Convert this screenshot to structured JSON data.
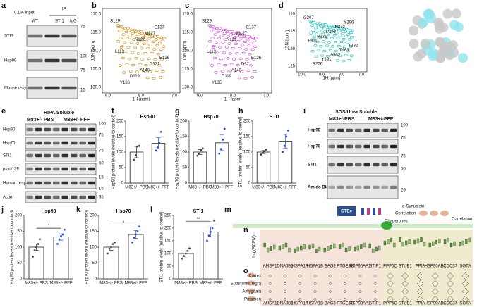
{
  "panel_labels": [
    "a",
    "b",
    "c",
    "d",
    "e",
    "f",
    "g",
    "h",
    "i",
    "j",
    "k",
    "l",
    "m",
    "n",
    "o"
  ],
  "blots": [
    {
      "headers": [
        "0.1% Input",
        "IP",
        "WT",
        "STI1",
        "IgG"
      ],
      "rows": [
        "STI1",
        "Hsp90",
        "Mouse α-synuclein"
      ],
      "mw": [
        "75",
        "100",
        "75",
        "15"
      ]
    },
    {
      "title": "RIPA Soluble",
      "groups": [
        "M83+/- PBS",
        "M83+/- PFF"
      ],
      "rows": [
        "Hsp90",
        "Hsp70",
        "STI1",
        "psyn129",
        "Human α-syn",
        "Actin"
      ],
      "mw": [
        "100",
        "75",
        "75",
        "50",
        "15",
        "15",
        "35"
      ]
    },
    {
      "title": "SDS/Urea Soluble",
      "groups": [
        "M83+/-PBS",
        "M83+/-PFF"
      ],
      "rows": [
        "Hsp90",
        "Hsp70",
        "STI1",
        "Amido Black"
      ],
      "mw": [
        "100",
        "75",
        "75",
        "50",
        "25"
      ]
    }
  ],
  "spectra": [
    {
      "xlabel": "1H (ppm)",
      "ylabel": "15N (ppm)",
      "xticks": [
        "9.0",
        "8.0",
        "7.0"
      ],
      "yticks": [
        "110.0",
        "115.0",
        "120.0",
        "125.0",
        "130.0"
      ],
      "peaks": [
        "S129",
        "D121",
        "N122",
        "Y136",
        "E126",
        "M127",
        "D119",
        "L113",
        "E137",
        "A140"
      ]
    },
    {
      "xlabel": "1H (ppm)",
      "ylabel": "15N (ppm)",
      "xticks": [
        "9.0",
        "8.0",
        "7.0"
      ],
      "yticks": [
        "110.0",
        "115.0",
        "120.0",
        "125.0",
        "130.0"
      ],
      "peaks": [
        "S129",
        "D121",
        "N122",
        "Y136",
        "E126",
        "M127",
        "D119",
        "L113",
        "E137",
        "A140"
      ]
    },
    {
      "xlabel": "1H (ppm)",
      "ylabel": "15N (ppm)",
      "xticks": [
        "10.0",
        "9.0",
        "8.0",
        "7.0"
      ],
      "yticks": [
        "110",
        "115",
        "120",
        "125"
      ],
      "peaks": [
        "G307",
        "T263",
        "D258",
        "R276",
        "T332",
        "N233",
        "Y291",
        "F311",
        "Y296",
        "A302",
        "R331"
      ]
    }
  ],
  "chart_data": [
    {
      "type": "bar",
      "title": "Hsp90",
      "ylabel": "Hsp90 protein levels (relative to control)",
      "categories": [
        "M83+/- PBS",
        "M83+/- PFF"
      ],
      "values": [
        100,
        128
      ],
      "errors": [
        18,
        18
      ],
      "points": [
        [
          75,
          90,
          118,
          120
        ],
        [
          105,
          115,
          130,
          165
        ]
      ],
      "point_colors": [
        "#444",
        "#2d4fc4"
      ],
      "ylim": [
        0,
        200
      ],
      "yticks": [
        0,
        50,
        100,
        150,
        200
      ]
    },
    {
      "type": "bar",
      "title": "Hsp70",
      "ylabel": "Hsp70 protein levels (relative to control)",
      "categories": [
        "M83+/- PBS",
        "M83+/- PFF"
      ],
      "values": [
        100,
        130
      ],
      "errors": [
        8,
        25
      ],
      "points": [
        [
          88,
          95,
          105,
          112
        ],
        [
          95,
          110,
          140,
          175
        ]
      ],
      "point_colors": [
        "#444",
        "#2d4fc4"
      ],
      "ylim": [
        0,
        200
      ],
      "yticks": [
        0,
        50,
        100,
        150,
        200
      ]
    },
    {
      "type": "bar",
      "title": "STI1",
      "ylabel": "STI1 protein levels (relative to control)",
      "categories": [
        "M83+/- PBS",
        "M83+/- PFF"
      ],
      "values": [
        100,
        135
      ],
      "errors": [
        5,
        22
      ],
      "points": [
        [
          92,
          98,
          102,
          108
        ],
        [
          100,
          120,
          150,
          170
        ]
      ],
      "point_colors": [
        "#444",
        "#2d4fc4"
      ],
      "ylim": [
        0,
        200
      ],
      "yticks": [
        0,
        50,
        100,
        150,
        200
      ]
    },
    {
      "type": "bar",
      "title": "Hsp90",
      "ylabel": "Hsp90 protein levels (relative to control)",
      "categories": [
        "M83+/- PBS",
        "M83+/- PFF"
      ],
      "values": [
        100,
        132
      ],
      "errors": [
        10,
        10
      ],
      "points": [
        [
          70,
          90,
          100,
          110,
          125
        ],
        [
          110,
          125,
          135,
          140,
          155
        ]
      ],
      "point_colors": [
        "#444",
        "#2d4fc4"
      ],
      "ylim": [
        0,
        200
      ],
      "yticks": [
        0,
        50,
        100,
        150,
        200
      ],
      "significance": "*"
    },
    {
      "type": "bar",
      "title": "Hsp70",
      "ylabel": "Hsp70 protein levels (relative to control)",
      "categories": [
        "M83+/- PBS",
        "M83+/- PFF"
      ],
      "values": [
        100,
        140
      ],
      "errors": [
        10,
        12
      ],
      "points": [
        [
          80,
          95,
          100,
          110,
          115
        ],
        [
          115,
          130,
          140,
          150,
          165
        ]
      ],
      "point_colors": [
        "#444",
        "#2d4fc4"
      ],
      "ylim": [
        0,
        200
      ],
      "yticks": [
        0,
        50,
        100,
        150,
        200
      ],
      "significance": "*"
    },
    {
      "type": "bar",
      "title": "STI1",
      "ylabel": "STI1 protein levels (relative to control)",
      "categories": [
        "M83+/- PBS",
        "M83+/- PFF"
      ],
      "values": [
        100,
        185
      ],
      "errors": [
        10,
        20
      ],
      "points": [
        [
          80,
          90,
          100,
          110,
          120
        ],
        [
          150,
          170,
          185,
          200,
          230
        ]
      ],
      "point_colors": [
        "#444",
        "#2d4fc4"
      ],
      "ylim": [
        0,
        250
      ],
      "yticks": [
        0,
        50,
        100,
        150,
        200,
        250
      ],
      "significance": "**"
    }
  ],
  "schematic": {
    "labels": [
      "GTEx",
      "α-Synuclein",
      "Correlation",
      "Chaperones",
      "Correlation"
    ]
  },
  "expression": {
    "ylabel": "Log(RCPM)",
    "genes": [
      "AHSA1",
      "DNAJB1",
      "HSPA1A",
      "HSPA1B",
      "BAG3",
      "PTGES3",
      "HSP90AA1",
      "STIP1",
      "PPP5C",
      "STUB1",
      "PPIA",
      "HSP90AB1",
      "CDC37",
      "SGTA"
    ],
    "regions": [
      "Cortex",
      "Substantia nigra",
      "Amygdala",
      "Putamen"
    ]
  }
}
